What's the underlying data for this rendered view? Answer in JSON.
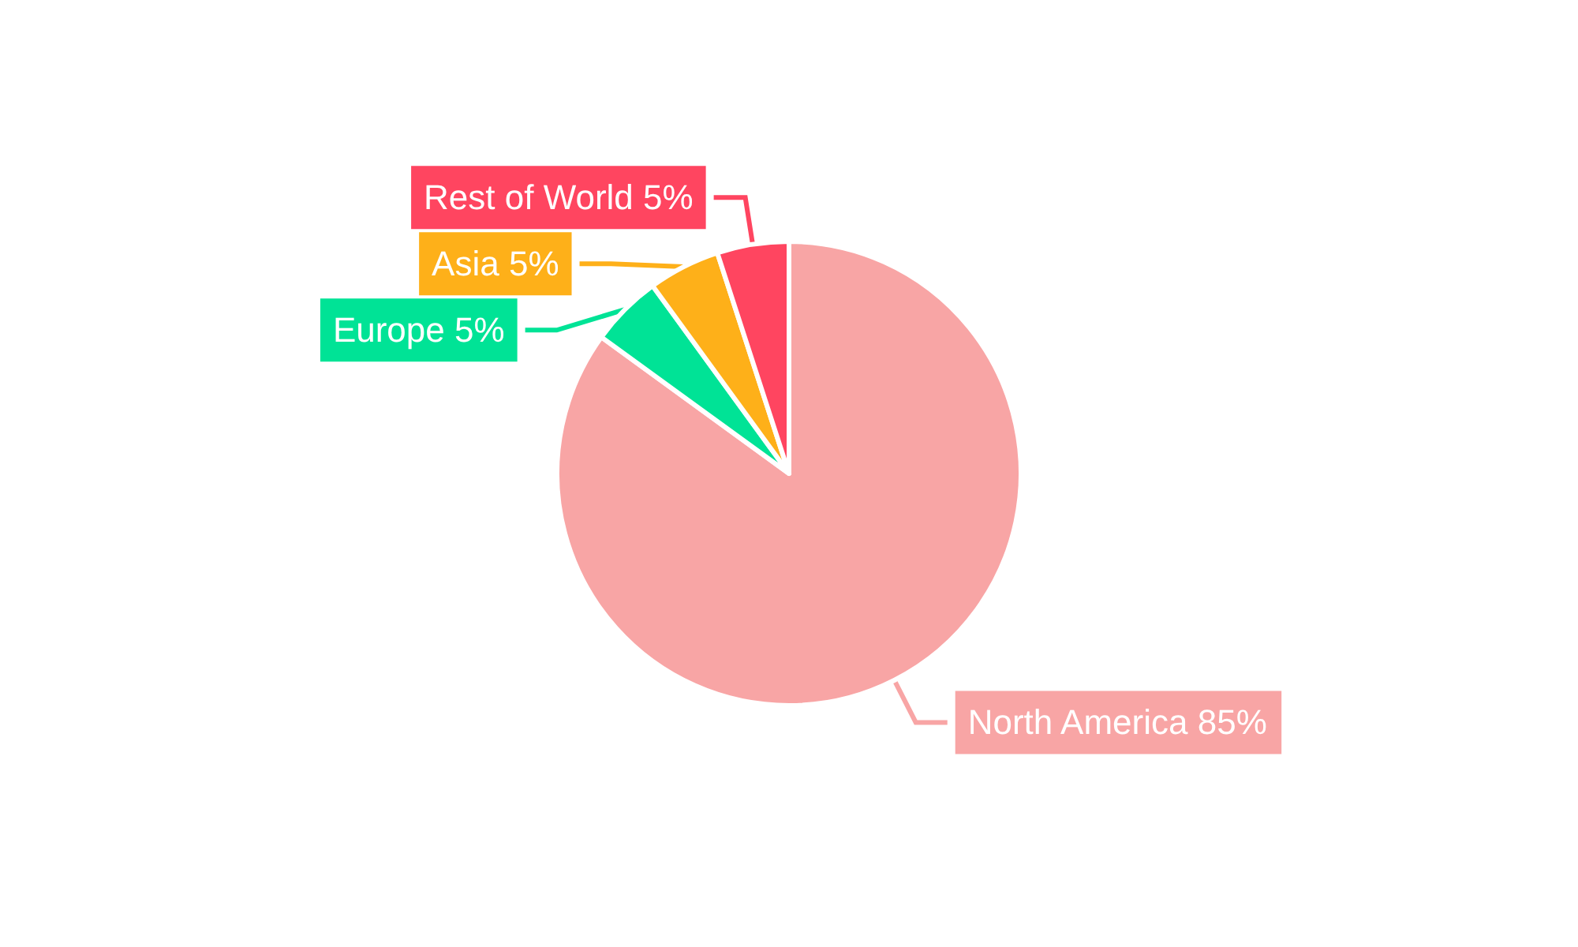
{
  "chart_data": {
    "type": "pie",
    "categories": [
      "North America",
      "Europe",
      "Asia",
      "Rest of World"
    ],
    "values": [
      85,
      5,
      5,
      5
    ],
    "value_labels": [
      "85%",
      "5%",
      "5%",
      "5%"
    ],
    "colors": [
      "#f8a5a5",
      "#00e396",
      "#feb019",
      "#ff4560"
    ],
    "legend": false
  }
}
